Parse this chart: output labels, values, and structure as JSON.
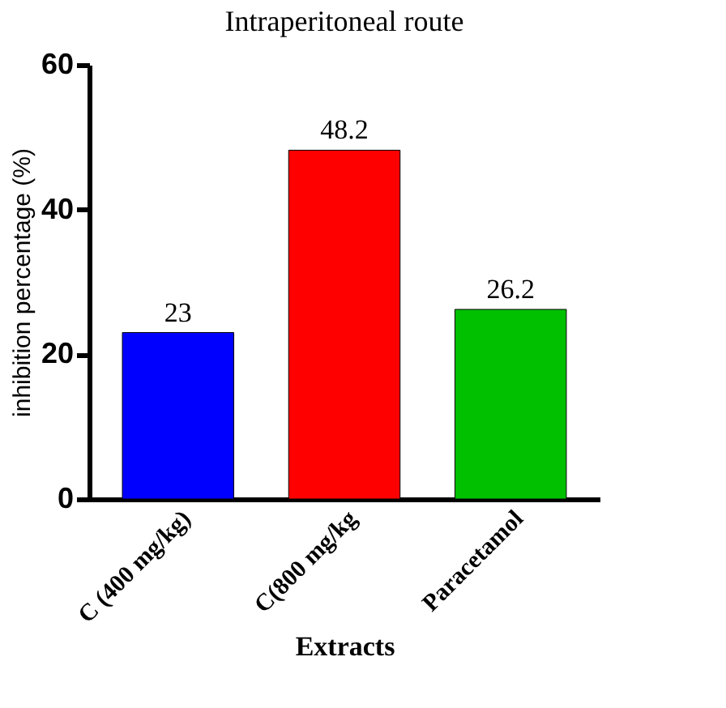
{
  "chart_data": {
    "type": "bar",
    "title": "Intraperitoneal route",
    "xlabel": "Extracts",
    "ylabel": "inhibition percentage (%)",
    "categories": [
      "C (400 mg/kg)",
      "C(800 mg/kg",
      "Paracetamol"
    ],
    "values": [
      23,
      48.2,
      26.2
    ],
    "colors": [
      "#0000ff",
      "#ff0000",
      "#00c000"
    ],
    "ylim": [
      0,
      60
    ],
    "yticks": [
      0,
      20,
      40,
      60
    ],
    "grid": false,
    "data_labels": true
  }
}
